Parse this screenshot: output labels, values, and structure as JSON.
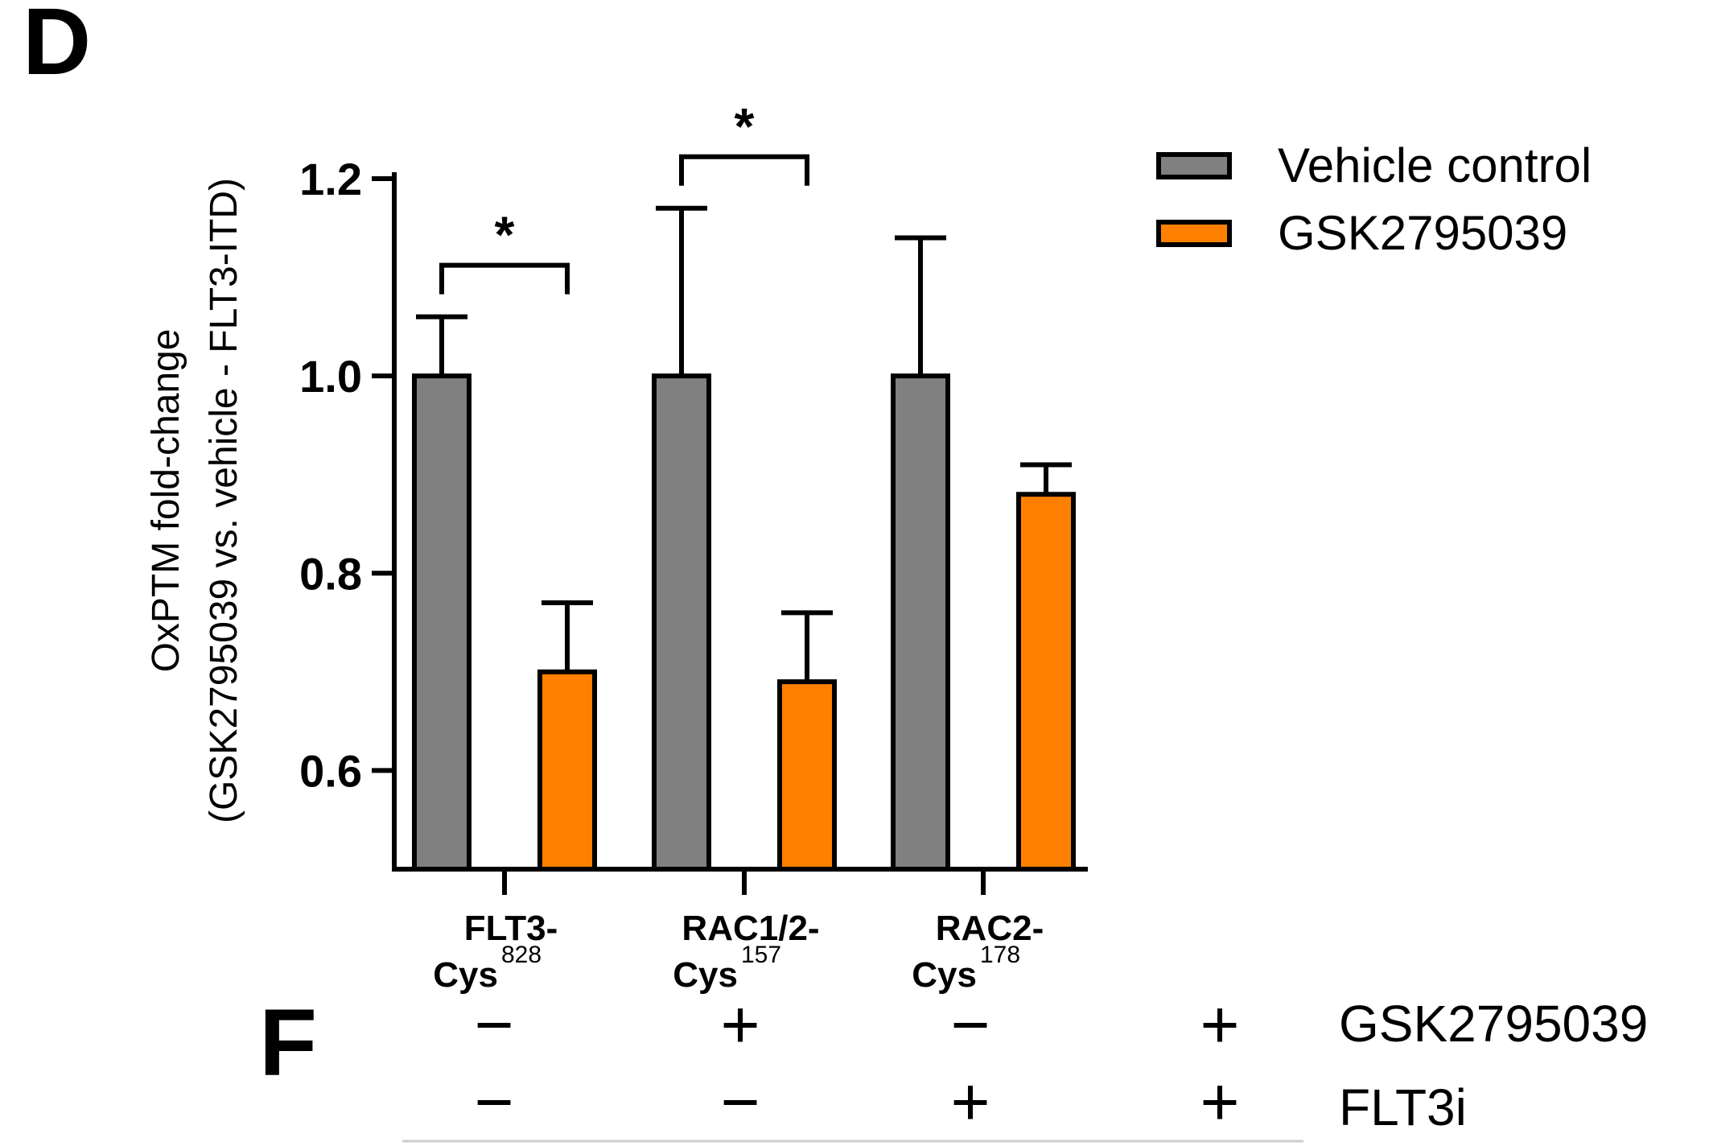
{
  "panels": {
    "d_letter": "D",
    "f_letter": "F"
  },
  "chart_data": {
    "type": "bar",
    "ylabel_line1": "OxPTM fold-change",
    "ylabel_line2": "(GSK2795039 vs. vehicle - FLT3-ITD)",
    "xlabel": "",
    "ylim": [
      0.5,
      1.2
    ],
    "yticks": [
      0.6,
      0.8,
      1.0,
      1.2
    ],
    "ytick_labels": [
      "0.6",
      "0.8",
      "1.0",
      "1.2"
    ],
    "grid": false,
    "legend_position": "top-right",
    "categories": [
      {
        "main_1": "FLT3-",
        "main_2": "Cys",
        "sup": "828"
      },
      {
        "main_1": "RAC1/2-",
        "main_2": "Cys",
        "sup": "157"
      },
      {
        "main_1": "RAC2-",
        "main_2": "Cys",
        "sup": "178"
      }
    ],
    "series": [
      {
        "name": "Vehicle control",
        "color": "#808080",
        "values": [
          1.0,
          1.0,
          1.0
        ],
        "errors": [
          0.06,
          0.17,
          0.14
        ]
      },
      {
        "name": "GSK2795039",
        "color": "#ff8000",
        "values": [
          0.7,
          0.69,
          0.88
        ],
        "errors": [
          0.07,
          0.07,
          0.03
        ]
      }
    ],
    "significance": [
      {
        "category_index": 0,
        "label": "*"
      },
      {
        "category_index": 1,
        "label": "*"
      }
    ]
  },
  "conditions": {
    "rows": [
      {
        "label": "GSK2795039",
        "signs": [
          "−",
          "+",
          "−",
          "+"
        ]
      },
      {
        "label": "FLT3i",
        "signs": [
          "−",
          "−",
          "+",
          "+"
        ]
      }
    ]
  }
}
